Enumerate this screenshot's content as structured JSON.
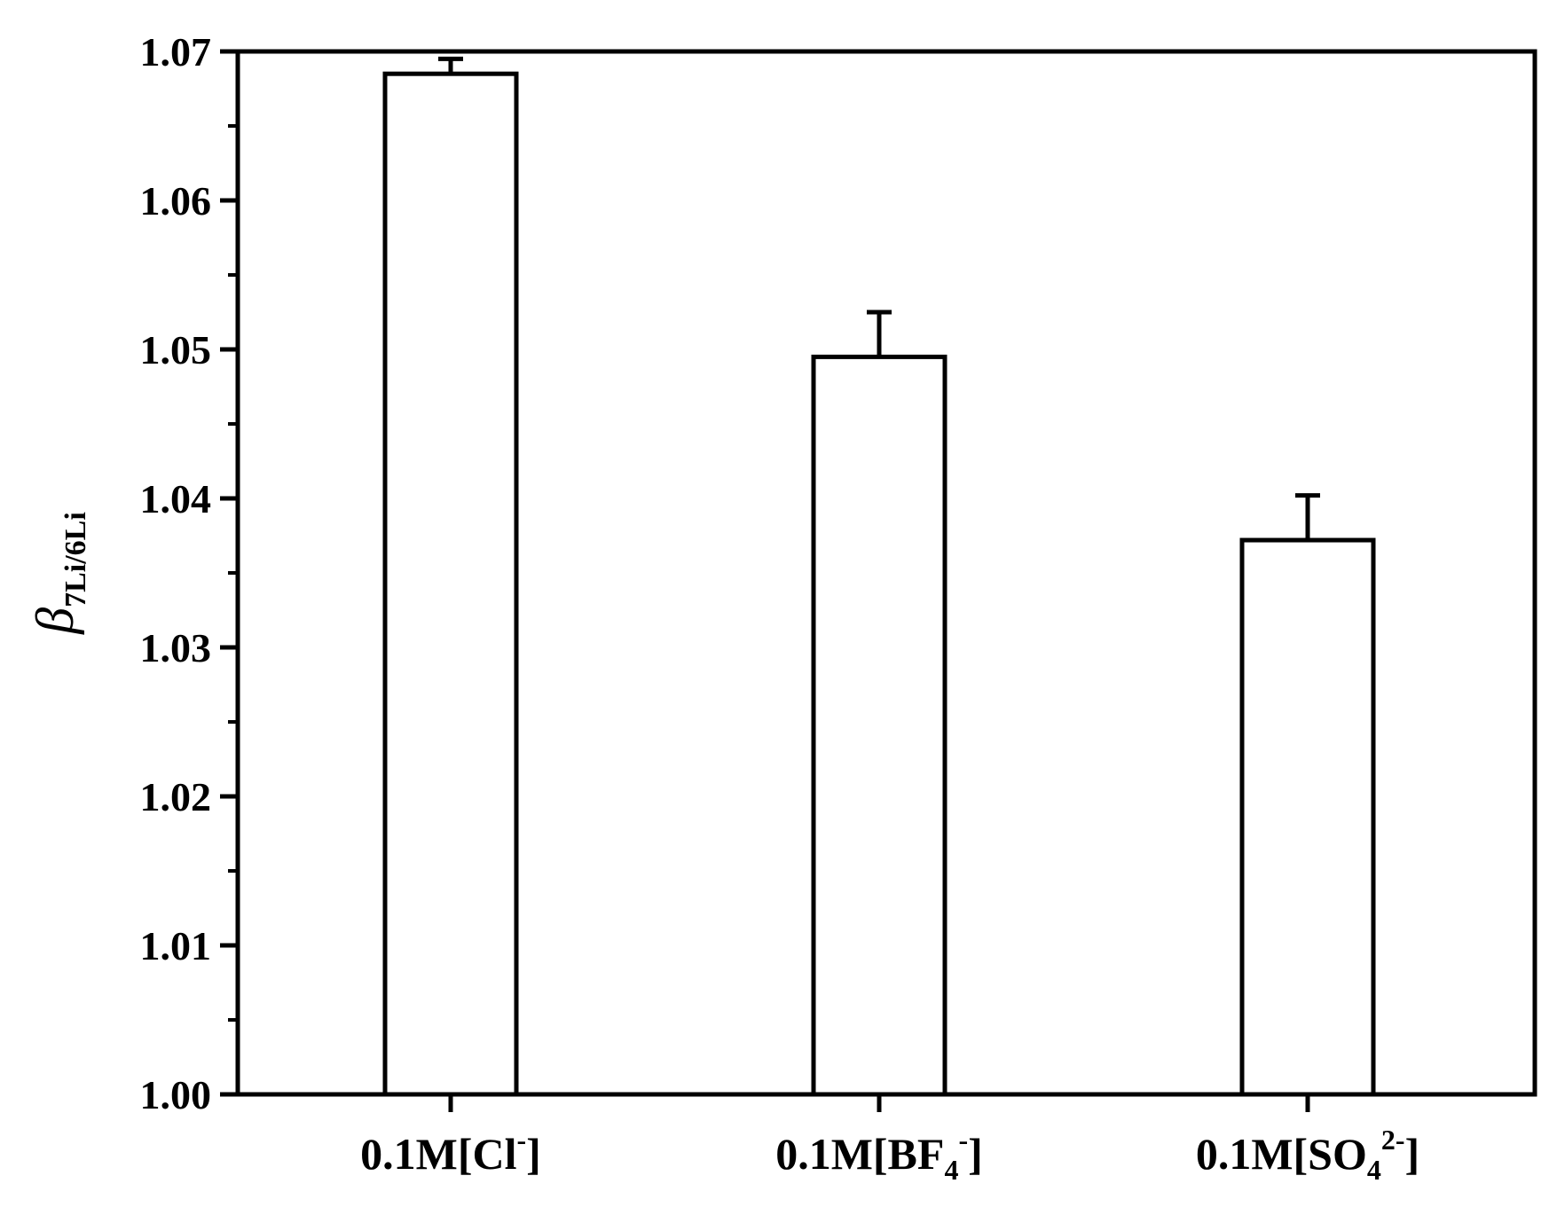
{
  "chart_data": {
    "type": "bar",
    "categories": [
      {
        "base": "0.1M[Cl",
        "sub": "",
        "sup": "-",
        "close": "]"
      },
      {
        "base": "0.1M[BF",
        "sub": "4",
        "sup": "-",
        "close": "]"
      },
      {
        "base": "0.1M[SO",
        "sub": "4",
        "sup": "2-",
        "close": "]"
      }
    ],
    "values": [
      1.0685,
      1.0495,
      1.0372
    ],
    "error_plus": [
      0.001,
      0.003,
      0.003
    ],
    "ylabel": {
      "symbol": "β",
      "subscript": "7Li/6Li"
    },
    "ylim": [
      1.0,
      1.07
    ],
    "yticks": [
      "1.00",
      "1.01",
      "1.02",
      "1.03",
      "1.04",
      "1.05",
      "1.06",
      "1.07"
    ],
    "grid": false,
    "bar_fill": "#ffffff",
    "stroke_color": "#000000"
  }
}
